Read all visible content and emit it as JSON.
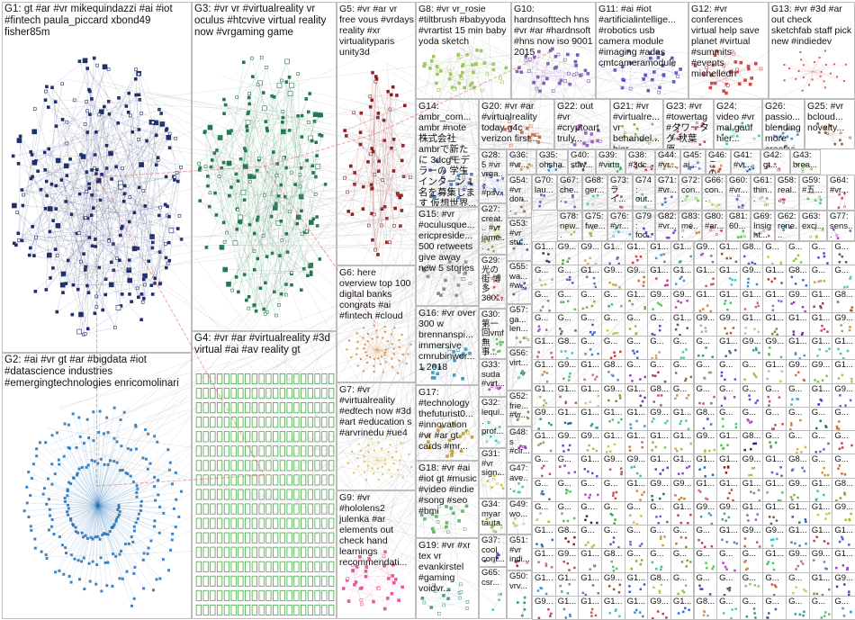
{
  "colors": {
    "border": "#bdbdbd",
    "edge_grey": "#b9b9b9",
    "edge_red": "#e05a5a"
  },
  "groups": [
    {
      "id": "G1",
      "label": "G1: gt #ar #vr mikequindazzi #ai #iot #fintech paula_piccard xbond49 fisher85m",
      "color": "#1f2f6b",
      "layout": "cloud",
      "count": 260
    },
    {
      "id": "G2",
      "label": "G2: #ai #vr gt #ar #bigdata #iot #datascience industries #emergingtechnologies enricomolinari",
      "color": "#1e6fb5",
      "layout": "ring",
      "count": 230
    },
    {
      "id": "G3",
      "label": "G3: #vr vr #virtualreality vr oculus #htcvive virtual reality now #vrgaming game",
      "color": "#1f7a4a",
      "layout": "cloud",
      "count": 200
    },
    {
      "id": "G4",
      "label": "G4: #vr #ar #virtualreality #3d virtual #ai #av reality gt",
      "color": "#44a844",
      "layout": "grid",
      "count": 340
    },
    {
      "id": "G5",
      "label": "G5: #vr #ar vr free vous #vrdays reality #xr virtualityparis unity3d",
      "color": "#8b1f1f",
      "layout": "cloud",
      "count": 70
    },
    {
      "id": "G6",
      "label": "G6: here overview top 100 digital banks congrats #ai #fintech #cloud",
      "color": "#d47a1f",
      "layout": "ring",
      "count": 55
    },
    {
      "id": "G7",
      "label": "G7: #vr #virtualreality #edtech now #3d #art #education s #arvrinedu #ue4",
      "color": "#e0b43a",
      "layout": "ring",
      "count": 40
    },
    {
      "id": "G8",
      "label": "G8: #vr vr_rosie #tiltbrush #babyyoda #vrartist 15 min baby yoda sketch",
      "color": "#9aca5a",
      "layout": "cloud",
      "count": 45
    },
    {
      "id": "G9",
      "label": "G9: #vr #hololens2 julenka #ar elements out check hand learnings recommendati...",
      "color": "#e65a9c",
      "layout": "cloud",
      "count": 35
    },
    {
      "id": "G10",
      "label": "G10: hardnsofttech hns #vr #ar #hardnsoft #hns now iso 9001 2015",
      "color": "#7a5cb5",
      "layout": "cloud",
      "count": 40
    },
    {
      "id": "G11",
      "label": "G11: #ai #iot #artificialintellige... #robotics usb camera module #imaging #adas cmtcameramodule",
      "color": "#5a5ac8",
      "layout": "cloud",
      "count": 30
    },
    {
      "id": "G12",
      "label": "G12: #vr conferences virtual help save planet #virtual #summits #events michelledh",
      "color": "#c84a4a",
      "layout": "cloud",
      "count": 30
    },
    {
      "id": "G13",
      "label": "G13: #vr #3d #ar out check sketchfab staff pick new #indiedev",
      "color": "#d43a3a",
      "layout": "ring",
      "count": 25
    },
    {
      "id": "G14",
      "label": "G14: ambr_com... ambr #note 株式会社 ambrで新たに 3dcgモデラーの 学生インターン 1名を募集しま す 仮想世界...",
      "color": "#5a7ab5",
      "layout": "cloud",
      "count": 20
    },
    {
      "id": "G15",
      "label": "G15: #vr #oculusque... ericpreside... 500 retweets give away new 5 stories",
      "color": "#8a8a8a",
      "layout": "cloud",
      "count": 20
    },
    {
      "id": "G16",
      "label": "G16: #vr over 300 w brennanspi... immersive cmrubinwor... 1 2018",
      "color": "#3a9ac8",
      "layout": "cloud",
      "count": 18
    },
    {
      "id": "G17",
      "label": "G17: #technology thefuturist0... #innovation #vr #ar gt cards #mr...",
      "color": "#c8a03a",
      "layout": "cloud",
      "count": 18
    },
    {
      "id": "G18",
      "label": "G18: #vr #ai #iot gt #music #video #indie #song #seo #bmi",
      "color": "#6ab56a",
      "layout": "cloud",
      "count": 18
    },
    {
      "id": "G19",
      "label": "G19: #vr #xr tex vr evankirstel #gaming voidvr...",
      "color": "#5a9a9a",
      "layout": "cloud",
      "count": 16
    },
    {
      "id": "G20",
      "label": "G20: #vr #ar #virtualreality today g4c verizon first...",
      "color": "#c86a3a",
      "layout": "cloud",
      "count": 14
    },
    {
      "id": "G21",
      "label": "G21: #vr #virtualre... vr behandel... hier...",
      "color": "#7ab53a",
      "layout": "cloud",
      "count": 12
    },
    {
      "id": "G22",
      "label": "G22: out #vr #cryptoart truly...",
      "color": "#a05ac8",
      "layout": "cloud",
      "count": 12
    },
    {
      "id": "G23",
      "label": "G23: #vr #towertag #タワータグ 秋葉原...",
      "color": "#c83a7a",
      "layout": "cloud",
      "count": 12
    },
    {
      "id": "G24",
      "label": "G24: video #vr mal gauf hier...",
      "color": "#3ac88a",
      "layout": "cloud",
      "count": 12
    },
    {
      "id": "G25",
      "label": "G25: #vr bcloud... novelty...",
      "color": "#8a5a3a",
      "layout": "cloud",
      "count": 12
    },
    {
      "id": "G26",
      "label": "G26: passio... blending more creativi...",
      "color": "#5a8ac8",
      "layout": "cloud",
      "count": 12
    },
    {
      "id": "G27",
      "label": "G27: creat... #vr jame... begi...",
      "color": "#9a9a3a",
      "layout": "cloud",
      "count": 10
    },
    {
      "id": "G28",
      "label": "G28: 5 #vr vrga... #psv...",
      "color": "#3a5ac8",
      "layout": "cloud",
      "count": 10
    },
    {
      "id": "G29",
      "label": "G29: 光の街 博多 360...",
      "color": "#c85a5a",
      "layout": "cloud",
      "count": 10
    },
    {
      "id": "G30",
      "label": "G30: 第一 回vmf 無事...",
      "color": "#5ac85a",
      "layout": "cloud",
      "count": 10
    },
    {
      "id": "G31",
      "label": "G31: #vr sign...",
      "color": "#c8c83a",
      "layout": "cloud",
      "count": 8
    },
    {
      "id": "G32",
      "label": "G32: lequi... prof...",
      "color": "#3ac8c8",
      "layout": "cloud",
      "count": 8
    },
    {
      "id": "G33",
      "label": "G33: suda #virt...",
      "color": "#c83ac8",
      "layout": "cloud",
      "count": 8
    },
    {
      "id": "G34",
      "label": "G34: myar tauta...",
      "color": "#8ac83a",
      "layout": "cloud",
      "count": 8
    },
    {
      "id": "G35",
      "label": "G35: ohsha...",
      "color": "#3a8ac8",
      "layout": "cloud",
      "count": 6
    },
    {
      "id": "G36",
      "label": "G36: #vr...",
      "color": "#c88a3a",
      "layout": "cloud",
      "count": 6
    },
    {
      "id": "G37",
      "label": "G37: cool cont...",
      "color": "#6a3ac8",
      "layout": "cloud",
      "count": 6
    },
    {
      "id": "G38",
      "label": "G38: #3dc...",
      "color": "#c83a3a",
      "layout": "cloud",
      "count": 6
    },
    {
      "id": "G39",
      "label": "G39: #virtu...",
      "color": "#3ac86a",
      "layout": "cloud",
      "count": 6
    },
    {
      "id": "G40",
      "label": "G40: stay...",
      "color": "#5a5a5a",
      "layout": "cloud",
      "count": 6
    },
    {
      "id": "G41",
      "label": "G41: #vr...",
      "color": "#3a6ac8",
      "layout": "cloud",
      "count": 6
    },
    {
      "id": "G42",
      "label": "G42: gt...",
      "color": "#c86a8a",
      "layout": "cloud",
      "count": 6
    },
    {
      "id": "G43",
      "label": "G43: brea...",
      "color": "#8ac86a",
      "layout": "cloud",
      "count": 6
    },
    {
      "id": "G44",
      "label": "G44: #vr...",
      "color": "#c8a06a",
      "layout": "cloud",
      "count": 6
    },
    {
      "id": "G45",
      "label": "G45: ai...",
      "color": "#6a8ac8",
      "layout": "cloud",
      "count": 6
    },
    {
      "id": "G46",
      "label": "G46: この...",
      "color": "#c85a3a",
      "layout": "cloud",
      "count": 6
    },
    {
      "id": "G47",
      "label": "G47: ave...",
      "color": "#5ac8a0",
      "layout": "cloud",
      "count": 5
    },
    {
      "id": "G48",
      "label": "G48: s #cir...",
      "color": "#a03ac8",
      "layout": "cloud",
      "count": 5
    },
    {
      "id": "G49",
      "label": "G49: wo...",
      "color": "#c8c86a",
      "layout": "cloud",
      "count": 5
    },
    {
      "id": "G50",
      "label": "G50: vrv...",
      "color": "#3a9a6a",
      "layout": "cloud",
      "count": 5
    },
    {
      "id": "G51",
      "label": "G51: #vr indi...",
      "color": "#9a3a6a",
      "layout": "cloud",
      "count": 5
    },
    {
      "id": "G52",
      "label": "G52: frie... #vr...",
      "color": "#6a9a3a",
      "layout": "cloud",
      "count": 5
    },
    {
      "id": "G53",
      "label": "G53: #vr stu...",
      "color": "#3a6a9a",
      "layout": "cloud",
      "count": 5
    },
    {
      "id": "G54",
      "label": "G54: #vr don...",
      "color": "#9a6a3a",
      "layout": "cloud",
      "count": 5
    },
    {
      "id": "G55",
      "label": "G55: wa... #w...",
      "color": "#6a3a9a",
      "layout": "cloud",
      "count": 5
    },
    {
      "id": "G56",
      "label": "G56: virt...",
      "color": "#3a9a9a",
      "layout": "cloud",
      "count": 5
    },
    {
      "id": "G57",
      "label": "G57: ga... len...",
      "color": "#9a9a6a",
      "layout": "cloud",
      "count": 5
    },
    {
      "id": "G58",
      "label": "G58: real...",
      "color": "#c84a6a",
      "layout": "cloud",
      "count": 5
    },
    {
      "id": "G59",
      "label": "G59: #五...",
      "color": "#4ac86a",
      "layout": "cloud",
      "count": 5
    },
    {
      "id": "G60",
      "label": "G60: #vr...",
      "color": "#6a4ac8",
      "layout": "cloud",
      "count": 5
    },
    {
      "id": "G61",
      "label": "G61: thin...",
      "color": "#c8944a",
      "layout": "cloud",
      "count": 5
    },
    {
      "id": "G62",
      "label": "G62: rene...",
      "color": "#4a94c8",
      "layout": "cloud",
      "count": 5
    },
    {
      "id": "G63",
      "label": "G63: exci...",
      "color": "#94c84a",
      "layout": "cloud",
      "count": 5
    },
    {
      "id": "G64",
      "label": "G64: #vr...",
      "color": "#c84a94",
      "layout": "cloud",
      "count": 5
    },
    {
      "id": "G65",
      "label": "G65: csr...",
      "color": "#4ac8c8",
      "layout": "cloud",
      "count": 4
    },
    {
      "id": "G66",
      "label": "G66: con...",
      "color": "#c8c84a",
      "layout": "cloud",
      "count": 4
    },
    {
      "id": "G67",
      "label": "G67: che...",
      "color": "#944ac8",
      "layout": "cloud",
      "count": 4
    },
    {
      "id": "G68",
      "label": "G68: ger...",
      "color": "#4ac894",
      "layout": "cloud",
      "count": 4
    },
    {
      "id": "G69",
      "label": "G69: Insight...",
      "color": "#c8704a",
      "layout": "cloud",
      "count": 4
    },
    {
      "id": "G70",
      "label": "G70: lau...",
      "color": "#704ac8",
      "layout": "cloud",
      "count": 4
    },
    {
      "id": "G71",
      "label": "G71: #vr...",
      "color": "#4a70c8",
      "layout": "cloud",
      "count": 4
    },
    {
      "id": "G72",
      "label": "G72: con...",
      "color": "#70c84a",
      "layout": "cloud",
      "count": 4
    },
    {
      "id": "G73",
      "label": "G73: ライ...",
      "color": "#c84a70",
      "layout": "cloud",
      "count": 4
    },
    {
      "id": "G74",
      "label": "G74: out...",
      "color": "#4ac870",
      "layout": "cloud",
      "count": 4
    },
    {
      "id": "G75",
      "label": "G75: fwe...",
      "color": "#c8b04a",
      "layout": "cloud",
      "count": 4
    },
    {
      "id": "G76",
      "label": "G76: #vr...",
      "color": "#4ab0c8",
      "layout": "cloud",
      "count": 4
    },
    {
      "id": "G77",
      "label": "G77: sens...",
      "color": "#b04ac8",
      "layout": "cloud",
      "count": 4
    },
    {
      "id": "G78",
      "label": "G78: new...",
      "color": "#b0c84a",
      "layout": "cloud",
      "count": 4
    },
    {
      "id": "G79",
      "label": "G79: foo...",
      "color": "#4a4ac8",
      "layout": "cloud",
      "count": 4
    },
    {
      "id": "G80",
      "label": "G80: #ar...",
      "color": "#c84a4a",
      "layout": "cloud",
      "count": 4
    },
    {
      "id": "G81",
      "label": "G81: 60...",
      "color": "#4ac84a",
      "layout": "cloud",
      "count": 4
    },
    {
      "id": "G82",
      "label": "G82: #vr...",
      "color": "#8a4ac8",
      "layout": "cloud",
      "count": 4
    },
    {
      "id": "G83",
      "label": "G83: mé...",
      "color": "#c88a4a",
      "layout": "cloud",
      "count": 4
    }
  ],
  "mini_labels": [
    "G1...",
    "G9...",
    "G9...",
    "G1...",
    "G1...",
    "G1...",
    "G1...",
    "G9...",
    "G1...",
    "G8...",
    "G...",
    "G...",
    "G...",
    "G...",
    "G...",
    "G..."
  ]
}
